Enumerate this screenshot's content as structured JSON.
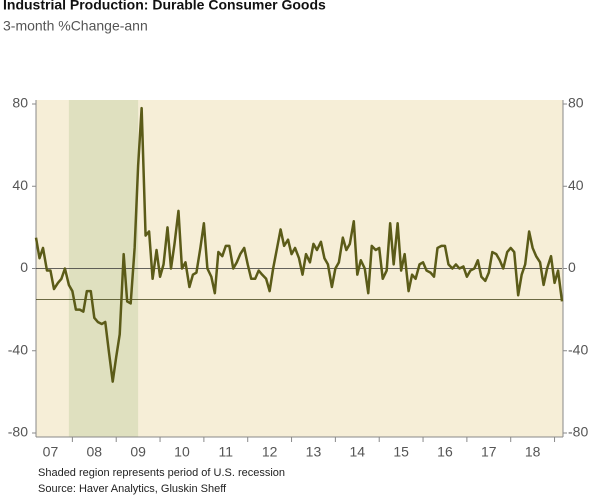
{
  "chart_data": {
    "type": "line",
    "title": "Industrial Production: Durable Consumer Goods",
    "subtitle": "3-month %Change-ann",
    "notes": [
      "Shaded region represents period of U.S. recession",
      "Source: Haver Analytics, Gluskin Sheff"
    ],
    "x": [
      2007.17,
      2007.25,
      2007.33,
      2007.42,
      2007.5,
      2007.58,
      2007.67,
      2007.75,
      2007.83,
      2007.92,
      2008.0,
      2008.08,
      2008.17,
      2008.25,
      2008.33,
      2008.42,
      2008.5,
      2008.58,
      2008.67,
      2008.75,
      2008.83,
      2008.92,
      2009.0,
      2009.08,
      2009.17,
      2009.25,
      2009.33,
      2009.42,
      2009.5,
      2009.58,
      2009.67,
      2009.75,
      2009.83,
      2009.92,
      2010.0,
      2010.08,
      2010.17,
      2010.25,
      2010.33,
      2010.42,
      2010.5,
      2010.58,
      2010.67,
      2010.75,
      2010.83,
      2010.92,
      2011.0,
      2011.08,
      2011.17,
      2011.25,
      2011.33,
      2011.42,
      2011.5,
      2011.58,
      2011.67,
      2011.75,
      2011.83,
      2011.92,
      2012.0,
      2012.08,
      2012.17,
      2012.25,
      2012.33,
      2012.42,
      2012.5,
      2012.58,
      2012.67,
      2012.75,
      2012.83,
      2012.92,
      2013.0,
      2013.08,
      2013.17,
      2013.25,
      2013.33,
      2013.42,
      2013.5,
      2013.58,
      2013.67,
      2013.75,
      2013.83,
      2013.92,
      2014.0,
      2014.08,
      2014.17,
      2014.25,
      2014.33,
      2014.42,
      2014.5,
      2014.58,
      2014.67,
      2014.75,
      2014.83,
      2014.92,
      2015.0,
      2015.08,
      2015.17,
      2015.25,
      2015.33,
      2015.42,
      2015.5,
      2015.58,
      2015.67,
      2015.75,
      2015.83,
      2015.92,
      2016.0,
      2016.08,
      2016.17,
      2016.25,
      2016.33,
      2016.42,
      2016.5,
      2016.58,
      2016.67,
      2016.75,
      2016.83,
      2016.92,
      2017.0,
      2017.08,
      2017.17,
      2017.25,
      2017.33,
      2017.42,
      2017.5,
      2017.58,
      2017.67,
      2017.75,
      2017.83,
      2017.92,
      2018.0,
      2018.08,
      2018.17,
      2018.25,
      2018.33,
      2018.42,
      2018.5,
      2018.58,
      2018.67,
      2018.75,
      2018.83,
      2018.92,
      2019.0,
      2019.08,
      2019.17
    ],
    "series": [
      {
        "color": "#5b5b18",
        "values": [
          15,
          5,
          10,
          -1,
          -1,
          -10,
          -7,
          -5,
          0,
          -8,
          -11,
          -20,
          -20,
          -21,
          -11,
          -11,
          -24,
          -26,
          -27,
          -26,
          -40,
          -55,
          -43,
          -32,
          7,
          -16,
          -17,
          10,
          50,
          78,
          16,
          18,
          -5,
          9,
          -4,
          2,
          20,
          0,
          12,
          28,
          0,
          3,
          -9,
          -3,
          -2,
          10,
          22,
          0,
          -4,
          -12,
          8,
          6,
          11,
          11,
          0,
          3,
          7,
          10,
          2,
          -5,
          -5,
          -1,
          -3,
          -5,
          -11,
          0,
          10,
          19,
          11,
          14,
          7,
          10,
          5,
          -3,
          7,
          3,
          12,
          9,
          13,
          5,
          2,
          -9,
          0,
          3,
          15,
          9,
          12,
          23,
          -3,
          4,
          0,
          -12,
          11,
          9,
          10,
          -5,
          -1,
          22,
          2,
          22,
          -1,
          7,
          -11,
          -3,
          -5,
          2,
          3,
          -1,
          -2,
          -4,
          10,
          11,
          11,
          2,
          0,
          2,
          0,
          1,
          -4,
          -1,
          0,
          4,
          -4,
          -6,
          -2,
          8,
          7,
          4,
          0,
          8,
          10,
          8,
          -13,
          -3,
          2,
          18,
          10,
          6,
          3,
          -8,
          0,
          6,
          -7,
          -1,
          -16
        ]
      }
    ],
    "xlim": [
      2007.17,
      2019.17
    ],
    "xticks": [
      {
        "value": 2007.5,
        "label": "07"
      },
      {
        "value": 2008.5,
        "label": "08"
      },
      {
        "value": 2009.5,
        "label": "09"
      },
      {
        "value": 2010.5,
        "label": "10"
      },
      {
        "value": 2011.5,
        "label": "11"
      },
      {
        "value": 2012.5,
        "label": "12"
      },
      {
        "value": 2013.5,
        "label": "13"
      },
      {
        "value": 2014.5,
        "label": "14"
      },
      {
        "value": 2015.5,
        "label": "15"
      },
      {
        "value": 2016.5,
        "label": "16"
      },
      {
        "value": 2017.5,
        "label": "17"
      },
      {
        "value": 2018.5,
        "label": "18"
      }
    ],
    "xminor": [
      2008,
      2009,
      2010,
      2011,
      2012,
      2013,
      2014,
      2015,
      2016,
      2017,
      2018,
      2019
    ],
    "ylim": [
      -80,
      80
    ],
    "yticks": [
      80,
      40,
      0,
      -40,
      -80
    ],
    "recession": [
      2007.92,
      2009.5
    ],
    "hline": -15,
    "plot_color": "#f6eed7",
    "recession_color": "#dfe0bf"
  }
}
